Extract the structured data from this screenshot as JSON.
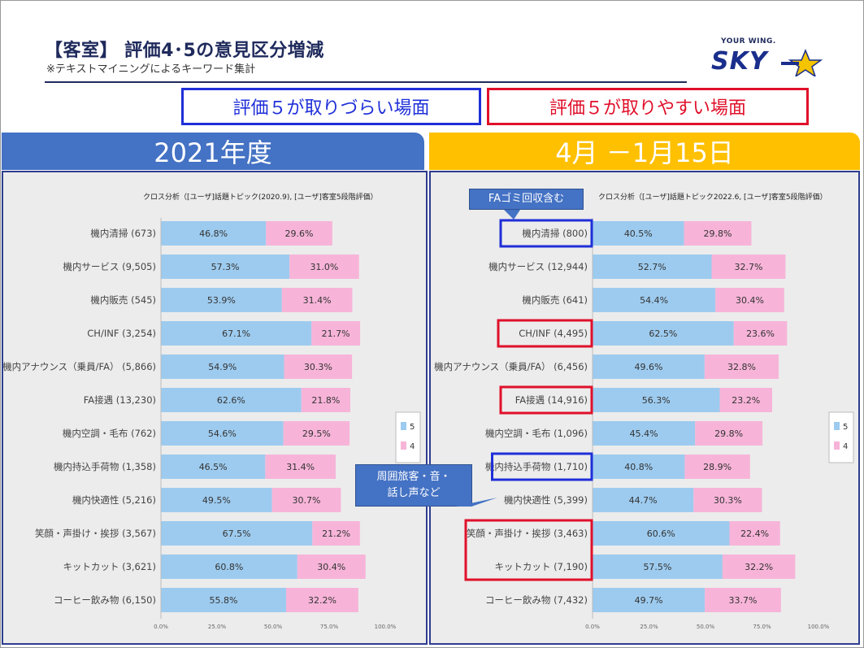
{
  "header": {
    "title": "【客室】 評価4･5の意見区分増減",
    "subtitle": "※テキストマイニングによるキーワード集計",
    "logo_tagline": "YOUR WING.",
    "logo_word": "SKY"
  },
  "legend_boxes": {
    "hard": "評価５が取りづらい場面",
    "easy": "評価５が取りやすい場面"
  },
  "periods": {
    "left": "2021年度",
    "right": "4月 －1月15日"
  },
  "callouts": {
    "fa_trash": "FAゴミ回収含む",
    "surroundings_line1": "周囲旅客・音・",
    "surroundings_line2": "話し声など"
  },
  "colors": {
    "score5": "#9dcbef",
    "score4": "#f7b4d8",
    "blue_highlight": "#1f2fd8",
    "red_highlight": "#e0102a"
  },
  "chart_data": [
    {
      "type": "bar",
      "orientation": "horizontal",
      "stacked": true,
      "title": "クロス分析（[ユーザ]話題トピック(2020.9), [ユーザ]客室5段階評価）",
      "categories": [
        "機内清掃 (673)",
        "機内サービス (9,505)",
        "機内販売 (545)",
        "CH/INF (3,254)",
        "機内アナウンス（乗員/FA） (5,866)",
        "FA接遇 (13,230)",
        "機内空調・毛布 (762)",
        "機内持込手荷物 (1,358)",
        "機内快適性 (5,216)",
        "笑顔・声掛け・挨拶 (3,567)",
        "キットカット (3,621)",
        "コーヒー飲み物 (6,150)"
      ],
      "series": [
        {
          "name": "5",
          "values": [
            46.8,
            57.3,
            53.9,
            67.1,
            54.9,
            62.6,
            54.6,
            46.5,
            49.5,
            67.5,
            60.8,
            55.8
          ],
          "labels": [
            "46.8%",
            "57.3%",
            "53.9%",
            "67.1%",
            "54.9%",
            "62.6%",
            "54.6%",
            "46.5%",
            "49.5%",
            "67.5%",
            "60.8%",
            "55.8%"
          ]
        },
        {
          "name": "4",
          "values": [
            29.6,
            31.0,
            31.4,
            21.7,
            30.3,
            21.8,
            29.5,
            31.4,
            30.7,
            21.2,
            30.4,
            32.2
          ],
          "labels": [
            "29.6%",
            "31.0%",
            "31.4%",
            "21.7%",
            "30.3%",
            "21.8%",
            "29.5%",
            "31.4%",
            "30.7%",
            "21.2%",
            "30.4%",
            "32.2%"
          ]
        }
      ],
      "xlim": [
        0,
        100
      ],
      "xticks": [
        "0.0%",
        "25.0%",
        "50.0%",
        "75.0%",
        "100.0%"
      ],
      "legend": [
        "5",
        "4"
      ],
      "highlights": []
    },
    {
      "type": "bar",
      "orientation": "horizontal",
      "stacked": true,
      "title": "クロス分析（[ユーザ]話題トピック2022.6, [ユーザ]客室5段階評価）",
      "categories": [
        "機内清掃 (800)",
        "機内サービス (12,944)",
        "機内販売 (641)",
        "CH/INF (4,495)",
        "機内アナウンス（乗員/FA） (6,456)",
        "FA接遇 (14,916)",
        "機内空調・毛布 (1,096)",
        "機内持込手荷物 (1,710)",
        "機内快適性 (5,399)",
        "笑顔・声掛け・挨拶 (3,463)",
        "キットカット (7,190)",
        "コーヒー飲み物 (7,432)"
      ],
      "series": [
        {
          "name": "5",
          "values": [
            40.5,
            52.7,
            54.4,
            62.5,
            49.6,
            56.3,
            45.4,
            40.8,
            44.7,
            60.6,
            57.5,
            49.7
          ],
          "labels": [
            "40.5%",
            "52.7%",
            "54.4%",
            "62.5%",
            "49.6%",
            "56.3%",
            "45.4%",
            "40.8%",
            "44.7%",
            "60.6%",
            "57.5%",
            "49.7%"
          ]
        },
        {
          "name": "4",
          "values": [
            29.8,
            32.7,
            30.4,
            23.6,
            32.8,
            23.2,
            29.8,
            28.9,
            30.3,
            22.4,
            32.2,
            33.7
          ],
          "labels": [
            "29.8%",
            "32.7%",
            "30.4%",
            "23.6%",
            "32.8%",
            "23.2%",
            "29.8%",
            "28.9%",
            "30.3%",
            "22.4%",
            "32.2%",
            "33.7%"
          ]
        }
      ],
      "xlim": [
        0,
        100
      ],
      "xticks": [
        "0.0%",
        "25.0%",
        "50.0%",
        "75.0%",
        "100.0%"
      ],
      "legend": [
        "5",
        "4"
      ],
      "highlights": [
        {
          "category_index": 0,
          "color": "blue"
        },
        {
          "category_index": 3,
          "color": "red"
        },
        {
          "category_index": 5,
          "color": "red"
        },
        {
          "category_index": 7,
          "color": "blue"
        },
        {
          "category_index": 9,
          "color": "red",
          "group_end": 10
        }
      ]
    }
  ]
}
